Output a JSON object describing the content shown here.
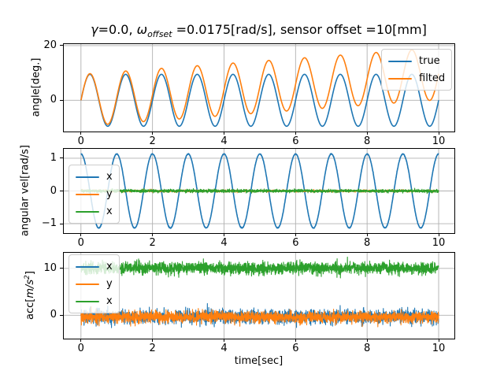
{
  "figure": {
    "title": {
      "gamma": "γ",
      "eq": "=0.0, ",
      "omega": "ω",
      "subscript": "offset",
      "rest": " =0.0175[rad/s], sensor offset =10[mm]"
    },
    "xlabel": "time[sec]",
    "background": "#ffffff"
  },
  "colors": {
    "blue": "#1f77b4",
    "orange": "#ff7f0e",
    "green": "#2ca02c",
    "grid": "#b0b0b0",
    "spine": "#000000",
    "text": "#000000"
  },
  "chart_data": [
    {
      "type": "line",
      "ylabel": "angle[deg.]",
      "xlim": [
        -0.48,
        10.44
      ],
      "ylim": [
        -11.43,
        20.57
      ],
      "grid": true,
      "xticks": [
        {
          "value": 0,
          "label": "0"
        },
        {
          "value": 2,
          "label": "2"
        },
        {
          "value": 4,
          "label": "4"
        },
        {
          "value": 6,
          "label": "6"
        },
        {
          "value": 8,
          "label": "8"
        },
        {
          "value": 10,
          "label": "10"
        }
      ],
      "yticks": [
        {
          "value": 0,
          "label": "0"
        },
        {
          "value": 20,
          "label": "20"
        }
      ],
      "legend": {
        "location": "upper right",
        "entries": [
          {
            "label": "true",
            "color": "#1f77b4"
          },
          {
            "label": "filted",
            "color": "#ff7f0e"
          }
        ]
      },
      "series": [
        {
          "name": "true",
          "color": "#1f77b4",
          "model": "sine",
          "amplitude": 9.5,
          "frequency_hz": 1.0,
          "mean": 0,
          "drift_per_sec": 0,
          "noise_std": 0,
          "t_start": 0,
          "t_end": 10,
          "line_width": 1.6,
          "seed": 11
        },
        {
          "name": "filted",
          "color": "#ff7f0e",
          "model": "sine",
          "amplitude": 9.5,
          "frequency_hz": 1.0,
          "mean": 0,
          "drift_per_sec": 0.97,
          "noise_std": 0,
          "t_start": 0,
          "t_end": 10,
          "line_width": 1.6,
          "seed": 12
        }
      ]
    },
    {
      "type": "line",
      "ylabel": "angular vel[rad/s]",
      "xlim": [
        -0.48,
        10.44
      ],
      "ylim": [
        -1.286,
        1.286
      ],
      "grid": true,
      "xticks": [
        {
          "value": 0,
          "label": "0"
        },
        {
          "value": 2,
          "label": "2"
        },
        {
          "value": 4,
          "label": "4"
        },
        {
          "value": 6,
          "label": "6"
        },
        {
          "value": 8,
          "label": "8"
        },
        {
          "value": 10,
          "label": "10"
        }
      ],
      "yticks": [
        {
          "value": -1,
          "label": "−1"
        },
        {
          "value": 0,
          "label": "0"
        },
        {
          "value": 1,
          "label": "1"
        }
      ],
      "legend": {
        "location": "center left",
        "entries": [
          {
            "label": "x",
            "color": "#1f77b4"
          },
          {
            "label": "y",
            "color": "#ff7f0e"
          },
          {
            "label": "x",
            "color": "#2ca02c"
          }
        ]
      },
      "series": [
        {
          "name": "x",
          "color": "#1f77b4",
          "model": "cosine",
          "amplitude": 1.13,
          "frequency_hz": 1.0,
          "mean": 0,
          "drift_per_sec": 0,
          "noise_std": 0.006,
          "t_start": 0,
          "t_end": 10,
          "line_width": 1.6,
          "seed": 21
        },
        {
          "name": "y",
          "color": "#ff7f0e",
          "model": "noise",
          "amplitude": 0,
          "frequency_hz": 0,
          "mean": 0,
          "drift_per_sec": 0,
          "noise_std": 0.016,
          "t_start": 0,
          "t_end": 10,
          "line_width": 1.1,
          "seed": 22
        },
        {
          "name": "x",
          "color": "#2ca02c",
          "model": "noise",
          "amplitude": 0,
          "frequency_hz": 0,
          "mean": 0,
          "drift_per_sec": 0,
          "noise_std": 0.022,
          "t_start": 0,
          "t_end": 10,
          "line_width": 1.1,
          "seed": 23
        }
      ]
    },
    {
      "type": "line",
      "ylabel": {
        "prefix": "acc[",
        "unit": "m/s",
        "sup": "2",
        "suffix": "]"
      },
      "xlim": [
        -0.48,
        10.44
      ],
      "ylim": [
        -5.0,
        13.33
      ],
      "grid": true,
      "xticks": [
        {
          "value": 0,
          "label": "0"
        },
        {
          "value": 2,
          "label": "2"
        },
        {
          "value": 4,
          "label": "4"
        },
        {
          "value": 6,
          "label": "6"
        },
        {
          "value": 8,
          "label": "8"
        },
        {
          "value": 10,
          "label": "10"
        }
      ],
      "yticks": [
        {
          "value": 0,
          "label": "0"
        },
        {
          "value": 10,
          "label": "10"
        }
      ],
      "legend": {
        "location": "upper left",
        "entries": [
          {
            "label": "x",
            "color": "#1f77b4"
          },
          {
            "label": "y",
            "color": "#ff7f0e"
          },
          {
            "label": "x",
            "color": "#2ca02c"
          }
        ]
      },
      "series": [
        {
          "name": "x",
          "color": "#1f77b4",
          "model": "noise",
          "amplitude": 0,
          "frequency_hz": 0,
          "mean": -0.3,
          "drift_per_sec": 0,
          "noise_std": 0.72,
          "t_start": 0,
          "t_end": 10,
          "line_width": 1.1,
          "seed": 31
        },
        {
          "name": "y",
          "color": "#ff7f0e",
          "model": "noise",
          "amplitude": 0,
          "frequency_hz": 0,
          "mean": -0.4,
          "drift_per_sec": 0,
          "noise_std": 0.6,
          "t_start": 0,
          "t_end": 10,
          "line_width": 1.1,
          "seed": 32
        },
        {
          "name": "x",
          "color": "#2ca02c",
          "model": "noise",
          "amplitude": 0,
          "frequency_hz": 0,
          "mean": 10.05,
          "drift_per_sec": 0,
          "noise_std": 0.62,
          "t_start": 0,
          "t_end": 10,
          "line_width": 1.1,
          "seed": 33
        }
      ]
    }
  ]
}
